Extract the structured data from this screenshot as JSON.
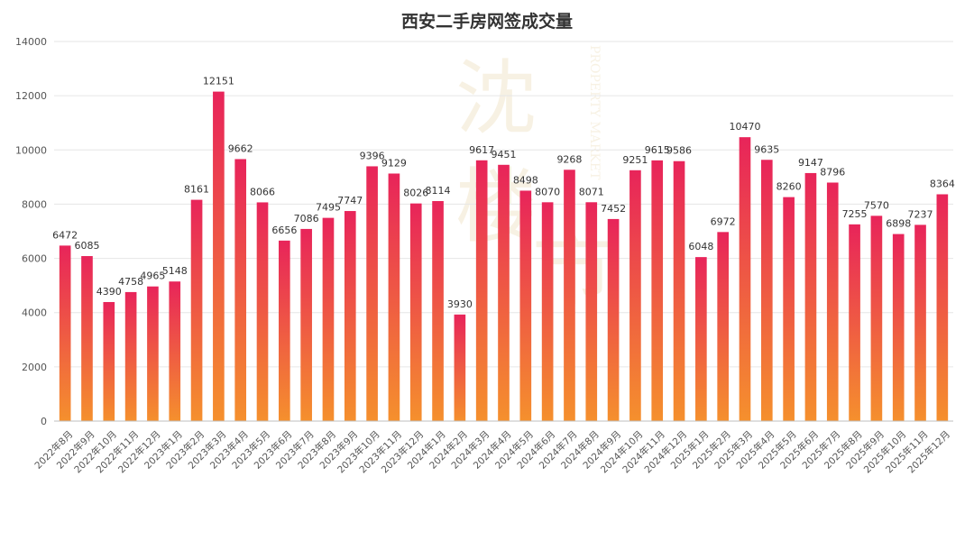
{
  "chart_data": {
    "type": "bar",
    "title": "西安二手房网签成交量",
    "xlabel": "",
    "ylabel": "",
    "ylim": [
      0,
      14000
    ],
    "yticks": [
      0,
      2000,
      4000,
      6000,
      8000,
      10000,
      12000,
      14000
    ],
    "grid": true,
    "legend": "none",
    "categories": [
      "2022年8月",
      "2022年9月",
      "2022年10月",
      "2022年11月",
      "2022年12月",
      "2023年1月",
      "2023年2月",
      "2023年3月",
      "2023年4月",
      "2023年5月",
      "2023年6月",
      "2023年7月",
      "2023年8月",
      "2023年9月",
      "2023年10月",
      "2023年11月",
      "2023年12月",
      "2024年1月",
      "2024年2月",
      "2024年3月",
      "2024年4月",
      "2024年5月",
      "2024年6月",
      "2024年7月",
      "2024年8月",
      "2024年9月",
      "2024年10月",
      "2024年11月",
      "2024年12月",
      "2025年1月",
      "2025年2月",
      "2025年3月",
      "2025年4月",
      "2025年5月",
      "2025年6月",
      "2025年7月",
      "2025年8月",
      "2025年9月",
      "2025年10月",
      "2025年11月",
      "2025年12月"
    ],
    "values": [
      6472,
      6085,
      4390,
      4758,
      4965,
      5148,
      8161,
      12151,
      9662,
      8066,
      6656,
      7086,
      7495,
      7747,
      9396,
      9129,
      8026,
      8114,
      3930,
      9617,
      9451,
      8498,
      8070,
      9268,
      8071,
      7452,
      9251,
      9615,
      9586,
      6048,
      6972,
      10470,
      9635,
      8260,
      9147,
      8796,
      7255,
      7570,
      6898,
      7237,
      8364
    ],
    "colors": {
      "bar_top": "#e8245a",
      "bar_bottom": "#f5902d"
    }
  },
  "watermark": {
    "big_chars": "沈楼市",
    "side_text": "PROPERTY MARKET"
  }
}
